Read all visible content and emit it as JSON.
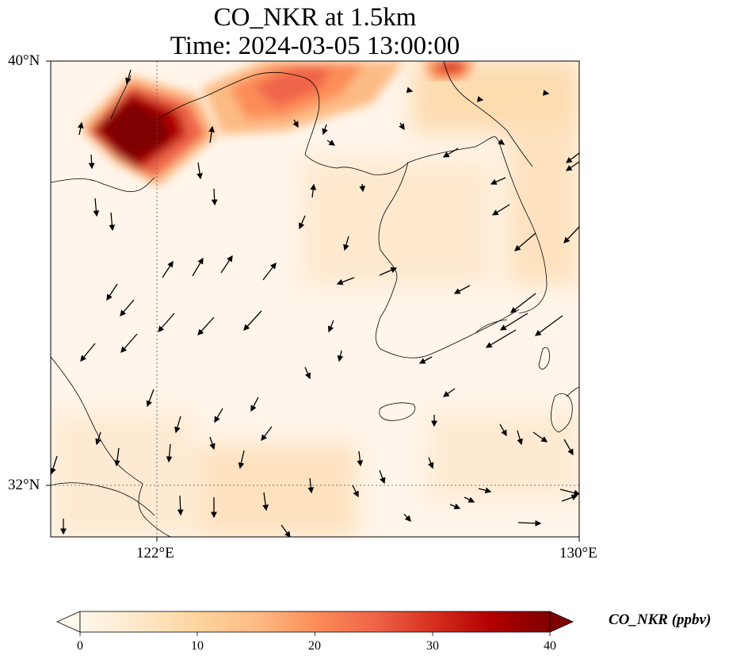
{
  "title": {
    "line1": "CO_NKR at 1.5km",
    "line2": "Time: 2024-03-05 13:00:00"
  },
  "map": {
    "lon_range": [
      120,
      130
    ],
    "lat_range": [
      31,
      40
    ],
    "x_tick_labels": [
      "122°E",
      "130°E"
    ],
    "y_tick_labels": [
      "40°N",
      "32°N"
    ],
    "gridlines": {
      "lons": [
        122
      ],
      "lats": [
        32
      ],
      "style": "dotted"
    },
    "field": "CO_NKR",
    "level": "1.5km",
    "colormap": "OrRd",
    "features": [
      "coastlines",
      "wind-vectors",
      "high-concentration-plume-northwest",
      "plume-bohai-north",
      "plume-korea-northeast"
    ]
  },
  "colorbar": {
    "label": "CO_NKR (ppbv)",
    "ticks": [
      "0",
      "10",
      "20",
      "30",
      "40"
    ],
    "range": [
      0,
      40
    ],
    "extend": "both",
    "colors": [
      "#fff7ec",
      "#fee8c8",
      "#fdd49e",
      "#fdbb84",
      "#fc8d59",
      "#ef6548",
      "#d7301f",
      "#b30000",
      "#7f0000"
    ]
  }
}
